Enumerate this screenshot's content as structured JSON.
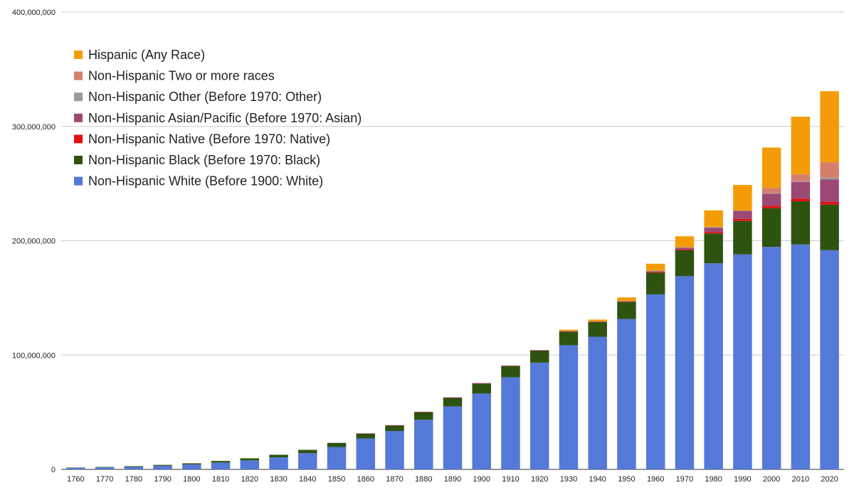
{
  "chart_data": {
    "type": "bar",
    "stacked": true,
    "title": "",
    "xlabel": "",
    "ylabel": "",
    "ylim": [
      0,
      400000000
    ],
    "y_ticks": [
      0,
      100000000,
      200000000,
      300000000,
      400000000
    ],
    "y_tick_labels": [
      "0",
      "100,000,000",
      "200,000,000",
      "300,000,000",
      "400,000,000"
    ],
    "grid": true,
    "legend_position": "top-left",
    "categories": [
      "1760",
      "1770",
      "1780",
      "1790",
      "1800",
      "1810",
      "1820",
      "1830",
      "1840",
      "1850",
      "1860",
      "1870",
      "1880",
      "1890",
      "1900",
      "1910",
      "1920",
      "1930",
      "1940",
      "1950",
      "1960",
      "1970",
      "1980",
      "1990",
      "2000",
      "2010",
      "2020"
    ],
    "series": [
      {
        "name": "Non-Hispanic White (Before 1900: White)",
        "color": "#5479d8",
        "values": [
          1300000,
          1700000,
          2200000,
          3200000,
          4300000,
          6000000,
          7900000,
          10500000,
          14200000,
          19600000,
          27000000,
          33600000,
          43400000,
          55100000,
          66300000,
          80600000,
          93400000,
          108600000,
          116000000,
          131600000,
          153100000,
          169000000,
          180300000,
          188100000,
          194600000,
          196800000,
          191700000
        ]
      },
      {
        "name": "Non-Hispanic Black (Before 1970: Black)",
        "color": "#2e5311",
        "values": [
          300000,
          450000,
          600000,
          760000,
          1000000,
          1400000,
          1800000,
          2300000,
          2900000,
          3600000,
          4400000,
          4900000,
          6600000,
          7500000,
          8800000,
          9800000,
          10500000,
          11900000,
          12900000,
          15000000,
          18900000,
          22600000,
          26100000,
          29200000,
          33900000,
          37700000,
          39900000
        ]
      },
      {
        "name": "Non-Hispanic Native (Before 1970: Native)",
        "color": "#e0100f",
        "values": [
          0,
          0,
          0,
          0,
          0,
          0,
          0,
          0,
          0,
          0,
          50000,
          100000,
          300000,
          250000,
          240000,
          270000,
          240000,
          330000,
          330000,
          340000,
          520000,
          800000,
          1300000,
          1800000,
          2100000,
          2300000,
          2300000
        ]
      },
      {
        "name": "Non-Hispanic Asian/Pacific (Before 1970: Asian)",
        "color": "#9c4874",
        "values": [
          0,
          0,
          0,
          0,
          0,
          0,
          0,
          0,
          0,
          0,
          40000,
          70000,
          120000,
          130000,
          130000,
          180000,
          180000,
          260000,
          250000,
          320000,
          900000,
          1400000,
          3500000,
          7000000,
          10500000,
          14700000,
          19600000
        ]
      },
      {
        "name": "Non-Hispanic Other (Before 1970: Other)",
        "color": "#999999",
        "values": [
          0,
          0,
          0,
          0,
          0,
          0,
          0,
          0,
          0,
          0,
          0,
          0,
          0,
          0,
          0,
          0,
          0,
          0,
          0,
          0,
          200000,
          500000,
          800000,
          300000,
          500000,
          600000,
          1700000
        ]
      },
      {
        "name": "Non-Hispanic Two or more races",
        "color": "#d47f6c",
        "values": [
          0,
          0,
          0,
          0,
          0,
          0,
          0,
          0,
          0,
          0,
          0,
          0,
          0,
          0,
          0,
          0,
          0,
          0,
          0,
          0,
          0,
          0,
          0,
          0,
          4600000,
          5900000,
          13500000
        ]
      },
      {
        "name": "Hispanic (Any Race)",
        "color": "#f39c08",
        "values": [
          0,
          0,
          0,
          0,
          0,
          0,
          0,
          0,
          0,
          0,
          0,
          0,
          0,
          0,
          0,
          0,
          0,
          1100000,
          1600000,
          3200000,
          6300000,
          9600000,
          14600000,
          22400000,
          35300000,
          50500000,
          62100000
        ]
      }
    ]
  }
}
